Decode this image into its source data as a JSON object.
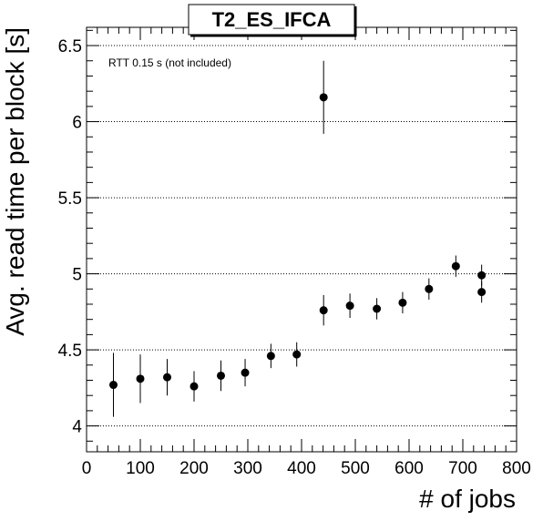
{
  "chart_data": {
    "type": "scatter",
    "title": "T2_ES_IFCA",
    "xlabel": "# of jobs",
    "ylabel": "Avg. read time per block [s]",
    "annotation": "RTT 0.15 s (not included)",
    "xlim": [
      0,
      800
    ],
    "ylim": [
      3.83,
      6.62
    ],
    "x_ticks": [
      0,
      100,
      200,
      300,
      400,
      500,
      600,
      700,
      800
    ],
    "y_ticks": [
      4,
      4.5,
      5,
      5.5,
      6,
      6.5
    ],
    "y_tick_labels": [
      "4",
      "4.5",
      "5",
      "5.5",
      "6",
      "6.5"
    ],
    "grid": "horizontal dotted",
    "marker_color": "#000000",
    "points": [
      {
        "x": 50,
        "y": 4.27,
        "err": 0.21
      },
      {
        "x": 100,
        "y": 4.31,
        "err": 0.16
      },
      {
        "x": 150,
        "y": 4.32,
        "err": 0.12
      },
      {
        "x": 200,
        "y": 4.26,
        "err": 0.1
      },
      {
        "x": 250,
        "y": 4.33,
        "err": 0.1
      },
      {
        "x": 295,
        "y": 4.35,
        "err": 0.09
      },
      {
        "x": 343,
        "y": 4.46,
        "err": 0.08
      },
      {
        "x": 391,
        "y": 4.47,
        "err": 0.08
      },
      {
        "x": 441,
        "y": 6.16,
        "err": 0.24
      },
      {
        "x": 441,
        "y": 4.76,
        "err": 0.1
      },
      {
        "x": 490,
        "y": 4.79,
        "err": 0.08
      },
      {
        "x": 540,
        "y": 4.77,
        "err": 0.07
      },
      {
        "x": 588,
        "y": 4.81,
        "err": 0.07
      },
      {
        "x": 637,
        "y": 4.9,
        "err": 0.07
      },
      {
        "x": 687,
        "y": 5.05,
        "err": 0.07
      },
      {
        "x": 735,
        "y": 4.99,
        "err": 0.07
      },
      {
        "x": 735,
        "y": 4.88,
        "err": 0.07
      }
    ]
  }
}
